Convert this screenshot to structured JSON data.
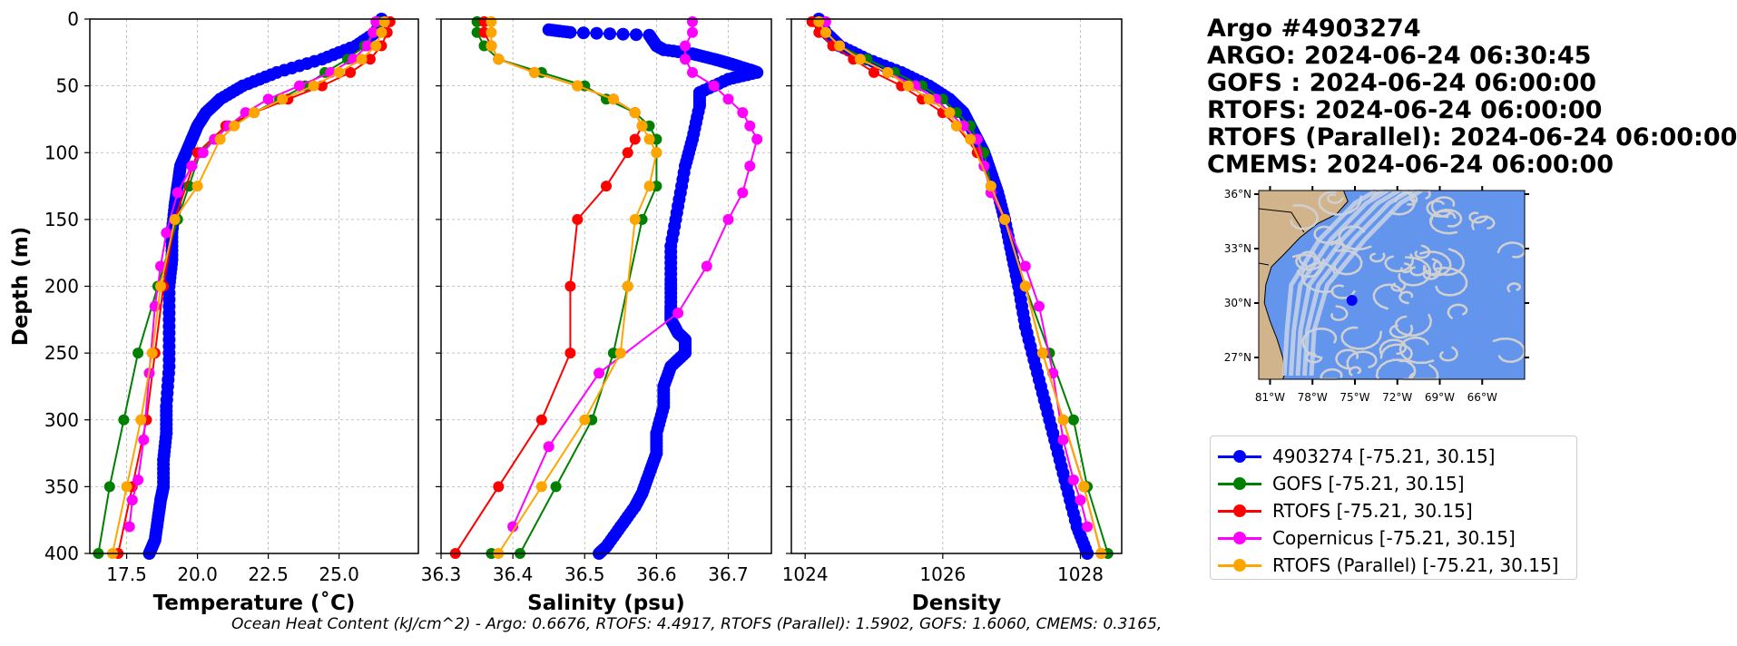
{
  "header": {
    "lines": [
      "Argo #4903274",
      "ARGO:  2024-06-24 06:30:45",
      "GOFS : 2024-06-24 06:00:00",
      "RTOFS: 2024-06-24 06:00:00",
      "RTOFS (Parallel): 2024-06-24 06:00:00",
      "CMEMS: 2024-06-24 06:00:00"
    ]
  },
  "footer": "Ocean Heat Content (kJ/cm^2) - Argo: 0.6676,  RTOFS: 4.4917,  RTOFS (Parallel): 1.5902,  GOFS: 1.6060,  CMEMS: 0.3165,",
  "legend": [
    {
      "label": "4903274 [-75.21, 30.15]",
      "color": "#0000ff"
    },
    {
      "label": "GOFS [-75.21, 30.15]",
      "color": "#008000"
    },
    {
      "label": "RTOFS [-75.21, 30.15]",
      "color": "#ff0000"
    },
    {
      "label": "Copernicus [-75.21, 30.15]",
      "color": "#ff00ff"
    },
    {
      "label": "RTOFS (Parallel) [-75.21, 30.15]",
      "color": "#ffa500"
    }
  ],
  "map": {
    "lat_labels": [
      "36°N",
      "33°N",
      "30°N",
      "27°N"
    ],
    "lon_labels": [
      "81°W",
      "78°W",
      "75°W",
      "72°W",
      "69°W",
      "66°W"
    ],
    "ocean_color": "#6495ed",
    "land_color": "#d2b48c",
    "float_position": {
      "lon": -75.21,
      "lat": 30.15
    }
  },
  "chart_data": [
    {
      "type": "line",
      "panel": "temperature",
      "xlabel": "Temperature (˚C)",
      "ylabel": "Depth (m)",
      "xlim": [
        16.2,
        27.8
      ],
      "ylim": [
        400,
        0
      ],
      "xticks": [
        "17.5",
        "20.0",
        "22.5",
        "25.0"
      ],
      "xtick_values": [
        17.5,
        20.0,
        22.5,
        25.0
      ],
      "yticks": [
        "0",
        "50",
        "100",
        "150",
        "200",
        "250",
        "300",
        "350",
        "400"
      ],
      "ytick_values": [
        0,
        50,
        100,
        150,
        200,
        250,
        300,
        350,
        400
      ],
      "grid": true,
      "series": [
        {
          "name": "4903274 [-75.21, 30.15]",
          "color": "#0000ff",
          "dense": true,
          "x": [
            26.5,
            26.3,
            25.6,
            24.4,
            22.8,
            21.6,
            20.8,
            20.3,
            20.0,
            19.8,
            19.6,
            19.4,
            19.3,
            19.2,
            19.1,
            19.1,
            19.0,
            19.0,
            19.0,
            18.9,
            18.9,
            18.8,
            18.8,
            18.7,
            18.6,
            18.5,
            18.3
          ],
          "y": [
            0,
            10,
            20,
            30,
            40,
            50,
            60,
            70,
            80,
            90,
            100,
            110,
            125,
            140,
            160,
            180,
            200,
            230,
            260,
            290,
            310,
            330,
            350,
            360,
            375,
            390,
            400
          ]
        },
        {
          "name": "GOFS [-75.21, 30.15]",
          "color": "#008000",
          "x": [
            26.4,
            26.2,
            25.9,
            25.3,
            24.5,
            23.8,
            22.9,
            22.0,
            21.1,
            20.6,
            20.1,
            19.7,
            19.3,
            18.6,
            17.9,
            17.4,
            16.9,
            16.5
          ],
          "y": [
            2,
            10,
            20,
            30,
            40,
            50,
            60,
            70,
            80,
            90,
            100,
            125,
            150,
            200,
            250,
            300,
            350,
            400
          ]
        },
        {
          "name": "RTOFS [-75.21, 30.15]",
          "color": "#ff0000",
          "x": [
            26.8,
            26.7,
            26.5,
            26.1,
            25.4,
            24.4,
            23.2,
            22.0,
            21.0,
            20.0,
            19.2,
            18.8,
            18.5,
            18.2,
            17.7,
            17.2
          ],
          "y": [
            2,
            10,
            20,
            30,
            40,
            50,
            60,
            70,
            80,
            100,
            150,
            200,
            250,
            300,
            350,
            400
          ]
        },
        {
          "name": "Copernicus [-75.21, 30.15]",
          "color": "#ff00ff",
          "x": [
            26.3,
            26.2,
            26.0,
            25.5,
            24.7,
            23.6,
            22.5,
            21.7,
            21.1,
            20.6,
            20.2,
            19.8,
            19.3,
            18.9,
            18.7,
            18.5,
            18.3,
            18.1,
            17.9,
            17.7,
            17.6
          ],
          "y": [
            2,
            10,
            20,
            30,
            40,
            50,
            60,
            70,
            80,
            90,
            100,
            110,
            130,
            160,
            185,
            215,
            265,
            315,
            345,
            360,
            380
          ]
        },
        {
          "name": "RTOFS (Parallel) [-75.21, 30.15]",
          "color": "#ffa500",
          "x": [
            26.6,
            26.5,
            26.3,
            25.8,
            25.0,
            24.1,
            23.0,
            22.0,
            21.3,
            20.8,
            20.0,
            19.2,
            18.7,
            18.4,
            18.0,
            17.5,
            17.0
          ],
          "y": [
            2,
            10,
            20,
            30,
            40,
            50,
            60,
            70,
            80,
            90,
            125,
            150,
            200,
            250,
            300,
            350,
            400
          ]
        }
      ]
    },
    {
      "type": "line",
      "panel": "salinity",
      "xlabel": "Salinity (psu)",
      "xlim": [
        36.3,
        36.76
      ],
      "ylim": [
        400,
        0
      ],
      "xticks": [
        "36.3",
        "36.4",
        "36.5",
        "36.6",
        "36.7"
      ],
      "xtick_values": [
        36.3,
        36.4,
        36.5,
        36.6,
        36.7
      ],
      "grid": true,
      "series": [
        {
          "name": "4903274 [-75.21, 30.15]",
          "color": "#0000ff",
          "dense": true,
          "x": [
            36.45,
            36.48,
            36.59,
            36.6,
            36.61,
            36.65,
            36.68,
            36.7,
            36.73,
            36.74,
            36.7,
            36.66,
            36.66,
            36.65,
            36.64,
            36.63,
            36.62,
            36.62,
            36.62,
            36.62,
            36.63,
            36.64,
            36.64,
            36.62,
            36.61,
            36.61,
            36.6,
            36.6,
            36.59,
            36.58,
            36.57,
            36.55,
            36.53,
            36.52
          ],
          "y": [
            8,
            10,
            12,
            20,
            23,
            26,
            30,
            33,
            38,
            40,
            45,
            55,
            65,
            90,
            110,
            140,
            170,
            195,
            215,
            225,
            235,
            240,
            250,
            260,
            275,
            290,
            310,
            325,
            340,
            355,
            365,
            380,
            395,
            400
          ]
        },
        {
          "name": "GOFS [-75.21, 30.15]",
          "color": "#008000",
          "x": [
            36.35,
            36.35,
            36.36,
            36.38,
            36.44,
            36.5,
            36.53,
            36.57,
            36.59,
            36.6,
            36.6,
            36.6,
            36.58,
            36.56,
            36.54,
            36.51,
            36.46,
            36.41,
            36.37
          ],
          "y": [
            2,
            10,
            20,
            30,
            40,
            50,
            60,
            70,
            80,
            90,
            100,
            125,
            150,
            200,
            250,
            300,
            350,
            400,
            400
          ]
        },
        {
          "name": "RTOFS [-75.21, 30.15]",
          "color": "#ff0000",
          "x": [
            36.36,
            36.36,
            36.37,
            36.38,
            36.43,
            36.49,
            36.54,
            36.57,
            36.58,
            36.57,
            36.56,
            36.53,
            36.49,
            36.48,
            36.48,
            36.44,
            36.38,
            36.32
          ],
          "y": [
            2,
            10,
            20,
            30,
            40,
            50,
            60,
            70,
            80,
            90,
            100,
            125,
            150,
            200,
            250,
            300,
            350,
            400
          ]
        },
        {
          "name": "Copernicus [-75.21, 30.15]",
          "color": "#ff00ff",
          "x": [
            36.65,
            36.65,
            36.64,
            36.64,
            36.65,
            36.68,
            36.7,
            36.72,
            36.73,
            36.74,
            36.73,
            36.72,
            36.7,
            36.67,
            36.63,
            36.52,
            36.45,
            36.4
          ],
          "y": [
            2,
            10,
            20,
            30,
            40,
            50,
            60,
            70,
            80,
            90,
            110,
            130,
            150,
            185,
            220,
            265,
            320,
            380
          ]
        },
        {
          "name": "RTOFS (Parallel) [-75.21, 30.15]",
          "color": "#ffa500",
          "x": [
            36.37,
            36.37,
            36.37,
            36.38,
            36.43,
            36.49,
            36.54,
            36.57,
            36.58,
            36.59,
            36.6,
            36.59,
            36.57,
            36.56,
            36.55,
            36.5,
            36.44,
            36.38
          ],
          "y": [
            2,
            10,
            20,
            30,
            40,
            50,
            60,
            70,
            80,
            90,
            100,
            125,
            150,
            200,
            250,
            300,
            350,
            400
          ]
        }
      ]
    },
    {
      "type": "line",
      "panel": "density",
      "xlabel": "Density",
      "xlim": [
        1023.8,
        1028.6
      ],
      "ylim": [
        400,
        0
      ],
      "xticks": [
        "1024",
        "1026",
        "1028"
      ],
      "xtick_values": [
        1024,
        1026,
        1028
      ],
      "grid": true,
      "series": [
        {
          "name": "4903274 [-75.21, 30.15]",
          "color": "#0000ff",
          "dense": true,
          "x": [
            1024.2,
            1024.3,
            1024.5,
            1024.9,
            1025.4,
            1025.8,
            1026.1,
            1026.3,
            1026.4,
            1026.5,
            1026.6,
            1026.7,
            1026.8,
            1026.9,
            1027.0,
            1027.1,
            1027.2,
            1027.35,
            1027.5,
            1027.65,
            1027.8,
            1027.95,
            1028.1
          ],
          "y": [
            0,
            10,
            20,
            30,
            40,
            50,
            60,
            70,
            80,
            90,
            100,
            115,
            130,
            150,
            175,
            200,
            230,
            260,
            290,
            320,
            350,
            380,
            400
          ]
        },
        {
          "name": "GOFS [-75.21, 30.15]",
          "color": "#008000",
          "x": [
            1024.2,
            1024.3,
            1024.5,
            1024.9,
            1025.3,
            1025.7,
            1026.0,
            1026.2,
            1026.4,
            1026.5,
            1026.6,
            1026.7,
            1026.9,
            1027.2,
            1027.55,
            1027.9,
            1028.1,
            1028.4
          ],
          "y": [
            2,
            10,
            20,
            30,
            40,
            50,
            60,
            70,
            80,
            90,
            100,
            125,
            150,
            200,
            250,
            300,
            350,
            400
          ]
        },
        {
          "name": "RTOFS [-75.21, 30.15]",
          "color": "#ff0000",
          "x": [
            1024.1,
            1024.2,
            1024.4,
            1024.7,
            1025.0,
            1025.4,
            1025.7,
            1026.0,
            1026.2,
            1026.5,
            1026.9,
            1027.2,
            1027.45,
            1027.75,
            1028.05,
            1028.3
          ],
          "y": [
            2,
            10,
            20,
            30,
            40,
            50,
            60,
            70,
            80,
            100,
            150,
            200,
            250,
            300,
            350,
            400
          ]
        },
        {
          "name": "Copernicus [-75.21, 30.15]",
          "color": "#ff00ff",
          "x": [
            1024.3,
            1024.3,
            1024.5,
            1024.8,
            1025.2,
            1025.6,
            1025.9,
            1026.1,
            1026.3,
            1026.5,
            1026.6,
            1026.7,
            1026.9,
            1027.2,
            1027.4,
            1027.6,
            1027.75,
            1027.9,
            1028.0,
            1028.1
          ],
          "y": [
            2,
            10,
            20,
            30,
            40,
            50,
            60,
            70,
            80,
            90,
            110,
            130,
            150,
            185,
            215,
            265,
            315,
            345,
            360,
            380
          ]
        },
        {
          "name": "RTOFS (Parallel) [-75.21, 30.15]",
          "color": "#ffa500",
          "x": [
            1024.2,
            1024.3,
            1024.5,
            1024.8,
            1025.2,
            1025.5,
            1025.8,
            1026.1,
            1026.2,
            1026.4,
            1026.7,
            1026.9,
            1027.2,
            1027.45,
            1027.75,
            1028.05,
            1028.3
          ],
          "y": [
            2,
            10,
            20,
            30,
            40,
            50,
            60,
            70,
            80,
            90,
            125,
            150,
            200,
            250,
            300,
            350,
            400
          ]
        }
      ]
    }
  ]
}
